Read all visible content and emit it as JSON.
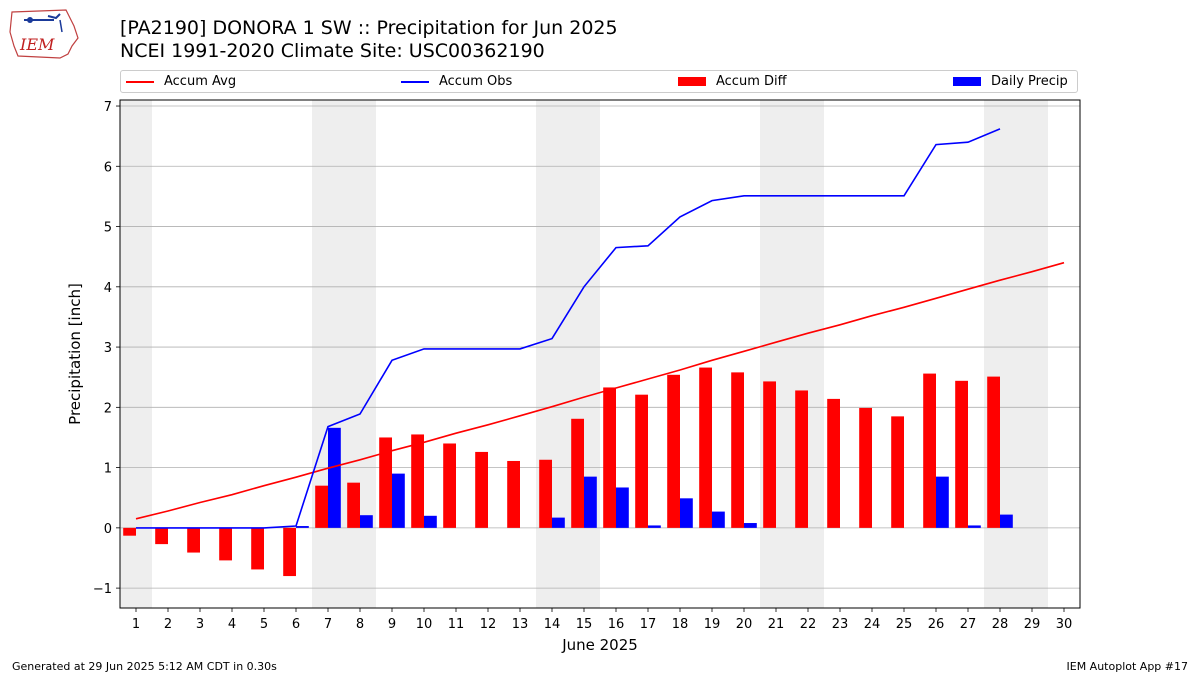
{
  "header": {
    "title": "[PA2190] DONORA 1 SW :: Precipitation for Jun 2025",
    "subtitle": "NCEI 1991-2020 Climate Site: USC00362190",
    "logo_text": "IEM"
  },
  "legend": [
    {
      "label": "Accum Avg",
      "kind": "line",
      "color": "#ff0000"
    },
    {
      "label": "Accum Obs",
      "kind": "line",
      "color": "#0000ff"
    },
    {
      "label": "Accum Diff",
      "kind": "box",
      "color": "#ff0000"
    },
    {
      "label": "Daily Precip",
      "kind": "box",
      "color": "#0000ff"
    }
  ],
  "footer": {
    "left": "Generated at 29 Jun 2025 5:12 AM CDT in 0.30s",
    "right": "IEM Autoplot App #17"
  },
  "chart_data": {
    "type": "bar",
    "xlabel": "June 2025",
    "ylabel": "Precipitation [inch]",
    "x": [
      1,
      2,
      3,
      4,
      5,
      6,
      7,
      8,
      9,
      10,
      11,
      12,
      13,
      14,
      15,
      16,
      17,
      18,
      19,
      20,
      21,
      22,
      23,
      24,
      25,
      26,
      27,
      28,
      29,
      30
    ],
    "xlim": [
      0.5,
      30.5
    ],
    "ylim": [
      -1.33,
      7.1
    ],
    "yticks": [
      -1,
      0,
      1,
      2,
      3,
      4,
      5,
      6,
      7
    ],
    "grid": true,
    "legend_position": "top",
    "weekend_shading_days": [
      1,
      7,
      8,
      14,
      15,
      21,
      22,
      28,
      29
    ],
    "series": [
      {
        "name": "Accum Avg",
        "type": "line",
        "color": "#ff0000",
        "values": [
          0.15,
          0.28,
          0.42,
          0.55,
          0.7,
          0.84,
          0.99,
          1.13,
          1.28,
          1.42,
          1.57,
          1.71,
          1.86,
          2.01,
          2.17,
          2.32,
          2.47,
          2.62,
          2.78,
          2.93,
          3.08,
          3.23,
          3.37,
          3.52,
          3.66,
          3.81,
          3.96,
          4.11,
          4.25,
          4.4
        ]
      },
      {
        "name": "Accum Obs",
        "type": "line",
        "color": "#0000ff",
        "values": [
          0.0,
          0.0,
          0.0,
          0.0,
          0.0,
          0.03,
          1.68,
          1.89,
          2.78,
          2.97,
          2.97,
          2.97,
          2.97,
          3.14,
          4.0,
          4.65,
          4.68,
          5.16,
          5.43,
          5.51,
          5.51,
          5.51,
          5.51,
          5.51,
          5.51,
          6.36,
          6.4,
          6.62,
          null,
          null
        ]
      },
      {
        "name": "Accum Diff",
        "type": "bar",
        "color": "#ff0000",
        "values": [
          -0.13,
          -0.27,
          -0.41,
          -0.54,
          -0.69,
          -0.8,
          0.7,
          0.75,
          1.5,
          1.55,
          1.4,
          1.26,
          1.11,
          1.13,
          1.81,
          2.33,
          2.21,
          2.54,
          2.66,
          2.58,
          2.43,
          2.28,
          2.14,
          1.99,
          1.85,
          2.56,
          2.44,
          2.51,
          null,
          null
        ]
      },
      {
        "name": "Daily Precip",
        "type": "bar",
        "color": "#0000ff",
        "values": [
          0.0,
          0.0,
          0.0,
          0.0,
          0.0,
          0.03,
          1.66,
          0.21,
          0.9,
          0.2,
          0.0,
          0.0,
          0.0,
          0.17,
          0.85,
          0.67,
          0.04,
          0.49,
          0.27,
          0.08,
          0.0,
          0.0,
          0.0,
          0.0,
          0.0,
          0.85,
          0.04,
          0.22,
          null,
          null
        ]
      }
    ]
  }
}
